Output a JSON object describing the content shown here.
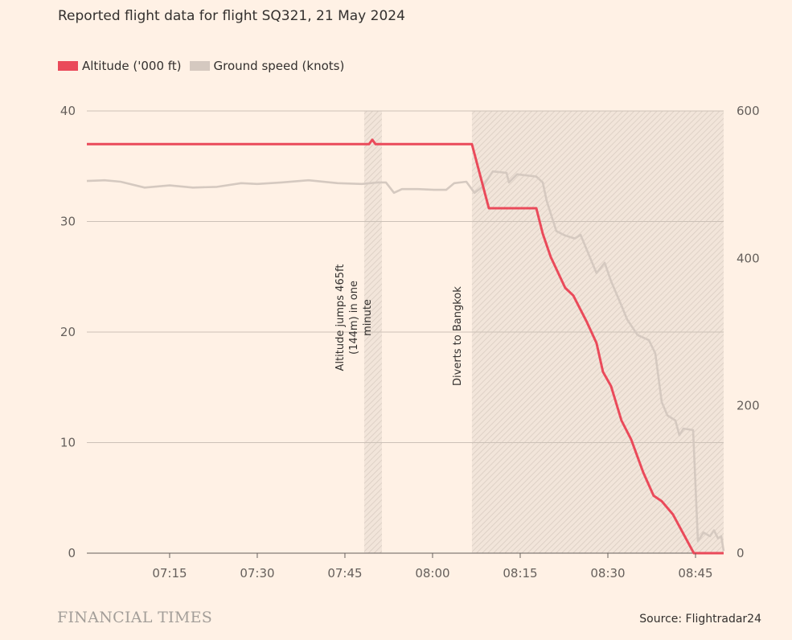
{
  "chart_data": {
    "type": "line",
    "title": "Reported flight data for flight SQ321, 21 May 2024",
    "legend_position": "top-left",
    "grid": true,
    "xlim": [
      "07:00:50",
      "08:49:49"
    ],
    "x_ticks": [
      "07:15",
      "07:30",
      "07:45",
      "08:00",
      "08:15",
      "08:30",
      "08:45"
    ],
    "y_left": {
      "lim": [
        0,
        40
      ],
      "ticks": [
        "0",
        "10",
        "20",
        "30",
        "40"
      ]
    },
    "y_right": {
      "lim": [
        0,
        600
      ],
      "ticks": [
        "0",
        "200",
        "400",
        "600"
      ]
    },
    "series": [
      {
        "name": "Altitude ('000 ft)",
        "axis": "left",
        "color": "#ea4a5a",
        "x": [
          "07:00:50",
          "07:49:08",
          "07:49:41",
          "07:50:14",
          "08:06:44",
          "08:09:38",
          "08:17:45",
          "08:18:51",
          "08:20:13",
          "08:22:42",
          "08:24:05",
          "08:26:25",
          "08:28:04",
          "08:29:10",
          "08:30:33",
          "08:32:20",
          "08:33:59",
          "08:36:03",
          "08:37:50",
          "08:39:13",
          "08:41:09",
          "08:44:43",
          "08:49:49"
        ],
        "y": [
          37.0,
          37.0,
          37.4,
          37.0,
          37.0,
          31.2,
          31.2,
          28.9,
          26.8,
          24.0,
          23.3,
          20.9,
          19.0,
          16.4,
          15.1,
          12.0,
          10.3,
          7.3,
          5.2,
          4.7,
          3.5,
          0.0,
          0.0
        ]
      },
      {
        "name": "Ground speed (knots)",
        "axis": "right",
        "color": "#d5c9c0",
        "x": [
          "07:00:50",
          "07:03:51",
          "07:06:36",
          "07:10:44",
          "07:15:00",
          "07:18:59",
          "07:23:07",
          "07:27:15",
          "07:30:00",
          "07:34:08",
          "07:38:48",
          "07:43:46",
          "07:47:53",
          "07:50:38",
          "07:52:01",
          "07:53:24",
          "07:54:46",
          "07:57:31",
          "08:00:16",
          "08:02:20",
          "08:03:43",
          "08:05:47",
          "08:07:10",
          "08:08:32",
          "08:10:19",
          "08:12:40",
          "08:13:04",
          "08:14:27",
          "08:17:45",
          "08:18:51",
          "08:19:32",
          "08:21:11",
          "08:22:42",
          "08:24:21",
          "08:25:19",
          "08:28:04",
          "08:29:27",
          "08:30:33",
          "08:32:20",
          "08:33:18",
          "08:35:05",
          "08:37:01",
          "08:38:07",
          "08:39:13",
          "08:40:11",
          "08:41:34",
          "08:42:14",
          "08:42:56",
          "08:44:35",
          "08:45:25",
          "08:46:22",
          "08:47:28",
          "08:48:10",
          "08:48:51",
          "08:49:24",
          "08:49:49"
        ],
        "y": [
          505,
          506,
          504,
          496,
          499,
          496,
          497,
          502,
          501,
          503,
          506,
          502,
          501,
          503,
          503,
          489,
          494,
          494,
          493,
          493,
          502,
          504,
          489,
          497,
          518,
          516,
          503,
          514,
          511,
          503,
          478,
          437,
          431,
          427,
          432,
          380,
          394,
          369,
          336,
          317,
          296,
          289,
          271,
          205,
          187,
          180,
          160,
          169,
          167,
          16,
          28,
          23,
          31,
          20,
          23,
          3
        ]
      }
    ],
    "shaded_periods": [
      {
        "start": "07:48:18",
        "end": "07:51:20",
        "label": "Altitude jumps 465ft (144m) in one minute",
        "label_lines": [
          "Altitude jumps 465ft",
          "(144m) in one",
          "minute"
        ]
      },
      {
        "start": "08:06:44",
        "end": "08:49:49",
        "label": "Diverts to Bangkok",
        "label_lines": [
          "Diverts to Bangkok"
        ]
      }
    ]
  },
  "legend": {
    "altitude": "Altitude ('000 ft)",
    "speed": "Ground speed (knots)"
  },
  "footer": {
    "logo": "FINANCIAL TIMES",
    "source": "Source: Flightradar24"
  }
}
